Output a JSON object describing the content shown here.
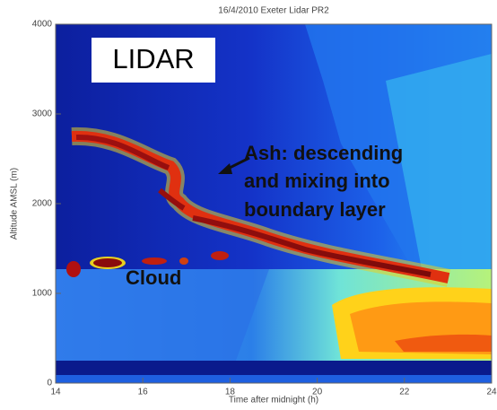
{
  "chart_data": {
    "type": "heatmap",
    "title": "16/4/2010 Exeter Lidar PR2",
    "xlabel": "Time after midnight (h)",
    "ylabel": "Altitude AMSL (m)",
    "xlim": [
      14,
      24
    ],
    "xticks": [
      14,
      16,
      18,
      20,
      22,
      24
    ],
    "ylim": [
      0,
      4000
    ],
    "yticks": [
      0,
      1000,
      2000,
      3000,
      4000
    ],
    "annotations": {
      "box": "LIDAR",
      "ash": [
        "Ash: descending",
        "and mixing into",
        "boundary layer"
      ],
      "cloud": "Cloud"
    }
  }
}
